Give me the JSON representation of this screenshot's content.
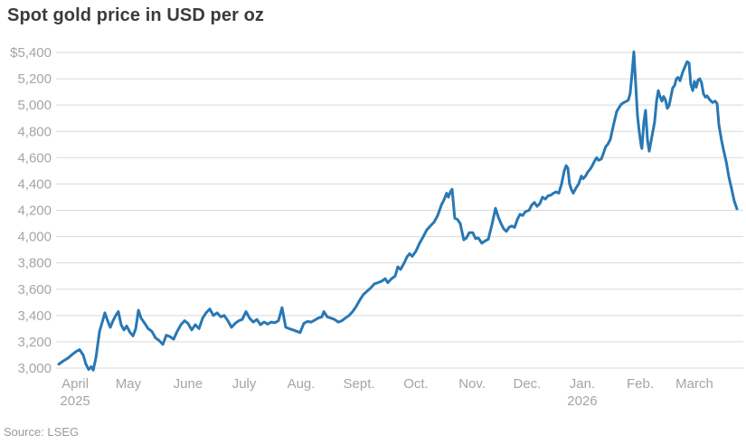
{
  "header": {
    "title": "Spot gold price in USD per oz"
  },
  "footer": {
    "source": "Source: LSEG"
  },
  "chart_data": {
    "type": "line",
    "title": "Spot gold price in USD per oz",
    "ylabel": "USD per oz",
    "x_unit": "days since 1 April 2025 (approx)",
    "ylim": [
      3000,
      5400
    ],
    "grid": true,
    "legend": "none",
    "line_color": "#2878b4",
    "grid_color": "#d9d9d9",
    "axis_label_color": "#a5a5a5",
    "y_ticks": [
      {
        "label": "$5,400",
        "value": 5400
      },
      {
        "label": "5,200",
        "value": 5200
      },
      {
        "label": "5,000",
        "value": 5000
      },
      {
        "label": "4,800",
        "value": 4800
      },
      {
        "label": "4,600",
        "value": 4600
      },
      {
        "label": "4,400",
        "value": 4400
      },
      {
        "label": "4,200",
        "value": 4200
      },
      {
        "label": "4,000",
        "value": 4000
      },
      {
        "label": "3,800",
        "value": 3800
      },
      {
        "label": "3,600",
        "value": 3600
      },
      {
        "label": "3,400",
        "value": 3400
      },
      {
        "label": "3,200",
        "value": 3200
      },
      {
        "label": "3,000",
        "value": 3000
      }
    ],
    "x_ticks": [
      {
        "label": "April",
        "sublabel": "2025",
        "d": 8.5
      },
      {
        "label": "May",
        "d": 36.2
      },
      {
        "label": "June",
        "d": 67.2
      },
      {
        "label": "July",
        "d": 96.4
      },
      {
        "label": "Aug.",
        "d": 126.0
      },
      {
        "label": "Sept.",
        "d": 156.1
      },
      {
        "label": "Oct.",
        "d": 185.7
      },
      {
        "label": "Nov.",
        "d": 214.9
      },
      {
        "label": "Dec.",
        "d": 243.5
      },
      {
        "label": "Jan.",
        "sublabel": "2026",
        "d": 272.2
      },
      {
        "label": "Feb.",
        "d": 302.3
      },
      {
        "label": "March",
        "d": 330.5
      }
    ],
    "series": [
      {
        "name": "Spot gold price (USD/oz)",
        "points": [
          [
            0.0,
            3030
          ],
          [
            2.4,
            3055
          ],
          [
            4.7,
            3075
          ],
          [
            7.1,
            3105
          ],
          [
            9.4,
            3130
          ],
          [
            10.8,
            3140
          ],
          [
            12.7,
            3100
          ],
          [
            14.1,
            3030
          ],
          [
            15.5,
            2990
          ],
          [
            16.9,
            3010
          ],
          [
            17.9,
            2985
          ],
          [
            19.3,
            3080
          ],
          [
            21.2,
            3280
          ],
          [
            22.6,
            3350
          ],
          [
            24.0,
            3420
          ],
          [
            25.4,
            3360
          ],
          [
            26.8,
            3310
          ],
          [
            28.2,
            3360
          ],
          [
            29.6,
            3400
          ],
          [
            31.0,
            3430
          ],
          [
            32.4,
            3330
          ],
          [
            33.9,
            3290
          ],
          [
            35.3,
            3320
          ],
          [
            37.1,
            3270
          ],
          [
            38.6,
            3245
          ],
          [
            40.0,
            3300
          ],
          [
            41.4,
            3440
          ],
          [
            42.8,
            3380
          ],
          [
            44.7,
            3340
          ],
          [
            46.5,
            3300
          ],
          [
            48.4,
            3280
          ],
          [
            50.3,
            3230
          ],
          [
            52.2,
            3210
          ],
          [
            54.1,
            3180
          ],
          [
            55.9,
            3250
          ],
          [
            57.8,
            3240
          ],
          [
            59.7,
            3220
          ],
          [
            61.6,
            3280
          ],
          [
            63.5,
            3330
          ],
          [
            65.4,
            3360
          ],
          [
            67.2,
            3340
          ],
          [
            69.1,
            3290
          ],
          [
            71.0,
            3330
          ],
          [
            72.9,
            3300
          ],
          [
            74.8,
            3380
          ],
          [
            76.6,
            3420
          ],
          [
            78.5,
            3450
          ],
          [
            80.4,
            3400
          ],
          [
            82.3,
            3420
          ],
          [
            84.2,
            3390
          ],
          [
            86.0,
            3400
          ],
          [
            87.9,
            3360
          ],
          [
            89.8,
            3310
          ],
          [
            91.7,
            3340
          ],
          [
            93.6,
            3360
          ],
          [
            95.4,
            3370
          ],
          [
            97.3,
            3430
          ],
          [
            99.2,
            3380
          ],
          [
            101.1,
            3350
          ],
          [
            103.0,
            3370
          ],
          [
            104.9,
            3330
          ],
          [
            106.7,
            3350
          ],
          [
            108.6,
            3335
          ],
          [
            110.5,
            3350
          ],
          [
            112.4,
            3345
          ],
          [
            114.2,
            3360
          ],
          [
            116.1,
            3460
          ],
          [
            118.0,
            3310
          ],
          [
            119.9,
            3300
          ],
          [
            121.8,
            3290
          ],
          [
            123.7,
            3280
          ],
          [
            125.5,
            3270
          ],
          [
            127.4,
            3340
          ],
          [
            129.3,
            3355
          ],
          [
            131.2,
            3350
          ],
          [
            133.1,
            3365
          ],
          [
            134.9,
            3380
          ],
          [
            136.8,
            3390
          ],
          [
            137.8,
            3430
          ],
          [
            139.6,
            3390
          ],
          [
            141.5,
            3380
          ],
          [
            143.4,
            3370
          ],
          [
            145.3,
            3350
          ],
          [
            147.2,
            3360
          ],
          [
            149.0,
            3380
          ],
          [
            150.9,
            3400
          ],
          [
            152.8,
            3430
          ],
          [
            154.7,
            3470
          ],
          [
            156.6,
            3520
          ],
          [
            158.4,
            3560
          ],
          [
            160.3,
            3585
          ],
          [
            162.2,
            3610
          ],
          [
            164.1,
            3640
          ],
          [
            166.0,
            3650
          ],
          [
            167.8,
            3660
          ],
          [
            169.7,
            3680
          ],
          [
            171.1,
            3650
          ],
          [
            173.0,
            3680
          ],
          [
            174.9,
            3700
          ],
          [
            176.3,
            3770
          ],
          [
            177.7,
            3750
          ],
          [
            179.6,
            3800
          ],
          [
            181.0,
            3845
          ],
          [
            182.4,
            3870
          ],
          [
            183.8,
            3850
          ],
          [
            185.7,
            3890
          ],
          [
            187.6,
            3950
          ],
          [
            189.5,
            4000
          ],
          [
            191.3,
            4050
          ],
          [
            193.2,
            4080
          ],
          [
            195.1,
            4110
          ],
          [
            197.0,
            4160
          ],
          [
            198.9,
            4240
          ],
          [
            200.3,
            4280
          ],
          [
            201.7,
            4330
          ],
          [
            202.6,
            4300
          ],
          [
            203.6,
            4340
          ],
          [
            204.5,
            4360
          ],
          [
            205.9,
            4140
          ],
          [
            207.3,
            4130
          ],
          [
            208.7,
            4100
          ],
          [
            210.6,
            3975
          ],
          [
            212.0,
            3990
          ],
          [
            213.4,
            4030
          ],
          [
            215.3,
            4030
          ],
          [
            216.7,
            3985
          ],
          [
            218.1,
            3990
          ],
          [
            220.0,
            3950
          ],
          [
            221.4,
            3965
          ],
          [
            223.3,
            3980
          ],
          [
            225.2,
            4090
          ],
          [
            227.1,
            4215
          ],
          [
            228.5,
            4150
          ],
          [
            229.9,
            4100
          ],
          [
            231.3,
            4060
          ],
          [
            232.7,
            4040
          ],
          [
            234.1,
            4070
          ],
          [
            235.5,
            4080
          ],
          [
            237.0,
            4070
          ],
          [
            238.4,
            4130
          ],
          [
            239.8,
            4170
          ],
          [
            241.2,
            4160
          ],
          [
            242.6,
            4190
          ],
          [
            244.5,
            4200
          ],
          [
            245.9,
            4240
          ],
          [
            247.3,
            4260
          ],
          [
            248.7,
            4230
          ],
          [
            250.1,
            4250
          ],
          [
            251.5,
            4300
          ],
          [
            253.0,
            4285
          ],
          [
            254.4,
            4310
          ],
          [
            255.8,
            4315
          ],
          [
            257.2,
            4330
          ],
          [
            258.6,
            4340
          ],
          [
            260.0,
            4330
          ],
          [
            261.4,
            4400
          ],
          [
            262.8,
            4500
          ],
          [
            263.8,
            4540
          ],
          [
            264.7,
            4520
          ],
          [
            265.6,
            4400
          ],
          [
            266.6,
            4355
          ],
          [
            267.5,
            4330
          ],
          [
            268.9,
            4370
          ],
          [
            270.3,
            4400
          ],
          [
            271.7,
            4460
          ],
          [
            272.7,
            4440
          ],
          [
            274.1,
            4465
          ],
          [
            275.0,
            4490
          ],
          [
            276.4,
            4515
          ],
          [
            277.4,
            4540
          ],
          [
            278.8,
            4580
          ],
          [
            279.7,
            4600
          ],
          [
            280.7,
            4580
          ],
          [
            282.1,
            4590
          ],
          [
            283.0,
            4625
          ],
          [
            284.4,
            4685
          ],
          [
            285.4,
            4700
          ],
          [
            286.8,
            4740
          ],
          [
            288.2,
            4835
          ],
          [
            289.1,
            4890
          ],
          [
            290.1,
            4950
          ],
          [
            291.5,
            4985
          ],
          [
            292.4,
            5005
          ],
          [
            293.8,
            5020
          ],
          [
            295.3,
            5030
          ],
          [
            296.2,
            5040
          ],
          [
            297.1,
            5090
          ],
          [
            298.1,
            5250
          ],
          [
            299.0,
            5405
          ],
          [
            300.0,
            5150
          ],
          [
            300.9,
            4920
          ],
          [
            301.8,
            4800
          ],
          [
            302.8,
            4690
          ],
          [
            303.2,
            4670
          ],
          [
            304.2,
            4870
          ],
          [
            305.1,
            4960
          ],
          [
            306.1,
            4730
          ],
          [
            307.0,
            4650
          ],
          [
            308.0,
            4730
          ],
          [
            308.9,
            4800
          ],
          [
            309.8,
            4870
          ],
          [
            310.8,
            5030
          ],
          [
            311.7,
            5110
          ],
          [
            312.6,
            5065
          ],
          [
            313.6,
            5030
          ],
          [
            314.5,
            5065
          ],
          [
            315.4,
            5040
          ],
          [
            316.4,
            4975
          ],
          [
            317.3,
            4995
          ],
          [
            318.3,
            5065
          ],
          [
            319.2,
            5130
          ],
          [
            320.2,
            5150
          ],
          [
            321.1,
            5200
          ],
          [
            322.0,
            5210
          ],
          [
            323.0,
            5185
          ],
          [
            324.4,
            5250
          ],
          [
            325.8,
            5300
          ],
          [
            326.7,
            5330
          ],
          [
            327.7,
            5320
          ],
          [
            328.6,
            5160
          ],
          [
            329.6,
            5110
          ],
          [
            330.5,
            5180
          ],
          [
            331.4,
            5135
          ],
          [
            332.4,
            5190
          ],
          [
            333.3,
            5200
          ],
          [
            334.2,
            5170
          ],
          [
            335.2,
            5085
          ],
          [
            336.2,
            5060
          ],
          [
            337.1,
            5070
          ],
          [
            338.5,
            5040
          ],
          [
            339.9,
            5020
          ],
          [
            341.3,
            5030
          ],
          [
            342.3,
            5010
          ],
          [
            343.2,
            4850
          ],
          [
            344.6,
            4730
          ],
          [
            345.6,
            4660
          ],
          [
            347.0,
            4570
          ],
          [
            348.4,
            4455
          ],
          [
            349.8,
            4365
          ],
          [
            351.2,
            4270
          ],
          [
            352.6,
            4210
          ]
        ]
      }
    ]
  }
}
